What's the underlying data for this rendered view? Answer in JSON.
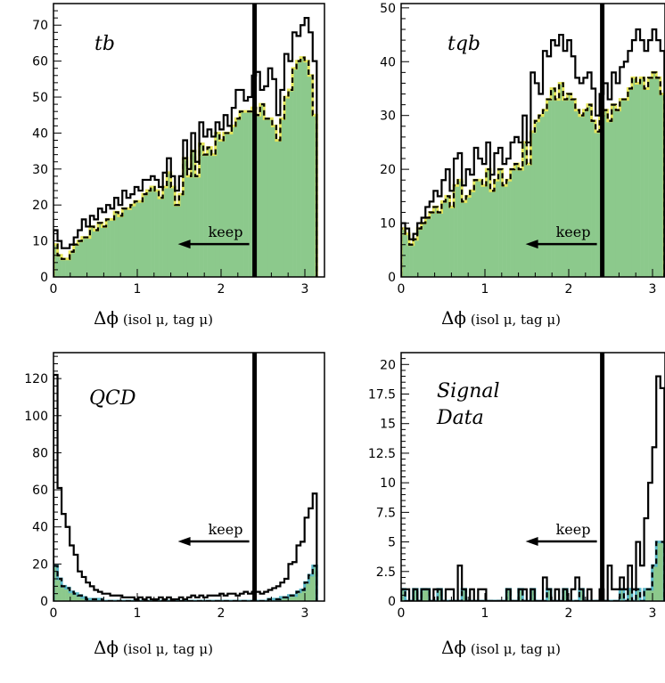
{
  "colors": {
    "fill": "#8cc98c",
    "yellow_dash": "#e6e65a",
    "cyan_dash": "#5ab8c8",
    "line": "#000000"
  },
  "chart_data": [
    {
      "type": "histogram",
      "panel": "tb",
      "label_lines": [
        "tb"
      ],
      "xlabel_symbol": "Δϕ",
      "xlabel_rest": " (isol μ, tag μ)",
      "x_ticks": [
        0,
        1,
        2,
        3
      ],
      "y_ticks": [
        0,
        10,
        20,
        30,
        40,
        50,
        60,
        70
      ],
      "xlim": [
        0,
        3.1416
      ],
      "ylim": [
        0,
        76
      ],
      "cut_x": 2.4,
      "cut_label": "keep",
      "dash_color": "yellow",
      "series": [
        {
          "role": "total_outline",
          "values": [
            13,
            10,
            8,
            8,
            9,
            11,
            13,
            16,
            14,
            17,
            16,
            19,
            18,
            20,
            19,
            22,
            20,
            24,
            22,
            23,
            25,
            24,
            27,
            27,
            28,
            27,
            25,
            29,
            33,
            28,
            24,
            28,
            38,
            30,
            40,
            32,
            43,
            39,
            41,
            39,
            43,
            41,
            45,
            42,
            47,
            52,
            52,
            49,
            50,
            56,
            57,
            52,
            53,
            58,
            55,
            45,
            52,
            62,
            60,
            68,
            67,
            70,
            72,
            68,
            60
          ]
        },
        {
          "role": "signal_filled",
          "values": [
            9,
            6,
            5,
            5,
            7,
            9,
            10,
            11,
            11,
            14,
            13,
            15,
            14,
            16,
            16,
            18,
            17,
            19,
            19,
            20,
            21,
            21,
            23,
            24,
            25,
            24,
            22,
            25,
            29,
            25,
            20,
            23,
            33,
            28,
            35,
            28,
            37,
            34,
            36,
            34,
            40,
            38,
            40,
            40,
            42,
            44,
            46,
            46,
            46,
            47,
            45,
            48,
            44,
            44,
            42,
            38,
            44,
            50,
            52,
            58,
            60,
            61,
            60,
            56,
            45
          ]
        }
      ]
    },
    {
      "type": "histogram",
      "panel": "tqb",
      "label_lines": [
        "tqb"
      ],
      "xlabel_symbol": "Δϕ",
      "xlabel_rest": " (isol μ, tag μ)",
      "x_ticks": [
        0,
        1,
        2,
        3
      ],
      "y_ticks": [
        0,
        10,
        20,
        30,
        40,
        50
      ],
      "xlim": [
        0,
        3.1416
      ],
      "ylim": [
        0,
        50.8
      ],
      "cut_x": 2.4,
      "cut_label": "keep",
      "dash_color": "yellow",
      "series": [
        {
          "role": "total_outline",
          "values": [
            10,
            9,
            7,
            8,
            10,
            11,
            13,
            14,
            16,
            15,
            18,
            20,
            16,
            22,
            23,
            17,
            20,
            19,
            24,
            22,
            21,
            25,
            19,
            23,
            24,
            21,
            22,
            25,
            26,
            25,
            30,
            25,
            38,
            36,
            34,
            42,
            41,
            44,
            43,
            45,
            42,
            44,
            41,
            37,
            36,
            37,
            38,
            35,
            30,
            34,
            36,
            33,
            38,
            36,
            39,
            40,
            42,
            44,
            46,
            44,
            42,
            44,
            46,
            44,
            42
          ]
        },
        {
          "role": "signal_filled",
          "values": [
            9,
            8,
            6,
            7,
            9,
            10,
            11,
            12,
            13,
            12,
            14,
            15,
            13,
            17,
            18,
            14,
            15,
            16,
            18,
            18,
            17,
            20,
            16,
            18,
            20,
            17,
            18,
            20,
            21,
            20,
            25,
            21,
            27,
            29,
            30,
            31,
            33,
            35,
            33,
            36,
            33,
            34,
            33,
            31,
            30,
            31,
            32,
            29,
            27,
            30,
            31,
            29,
            32,
            31,
            33,
            33,
            35,
            37,
            36,
            37,
            35,
            37,
            38,
            37,
            34
          ]
        }
      ]
    },
    {
      "type": "histogram",
      "panel": "QCD",
      "label_lines": [
        "QCD"
      ],
      "xlabel_symbol": "Δϕ",
      "xlabel_rest": " (isol μ, tag μ)",
      "x_ticks": [
        0,
        1,
        2,
        3
      ],
      "y_ticks": [
        0,
        20,
        40,
        60,
        80,
        100,
        120
      ],
      "xlim": [
        0,
        3.1416
      ],
      "ylim": [
        0,
        134
      ],
      "cut_x": 2.4,
      "cut_label": "keep",
      "dash_color": "cyan",
      "series": [
        {
          "role": "total_outline",
          "values": [
            122,
            61,
            47,
            40,
            30,
            25,
            16,
            13,
            10,
            8,
            6,
            5,
            4,
            4,
            3,
            3,
            3,
            2,
            2,
            2,
            1,
            2,
            1,
            2,
            1,
            1,
            2,
            1,
            2,
            1,
            1,
            2,
            1,
            2,
            3,
            2,
            3,
            2,
            3,
            3,
            3,
            4,
            3,
            4,
            4,
            3,
            4,
            5,
            4,
            5,
            5,
            4,
            5,
            6,
            7,
            8,
            10,
            12,
            20,
            21,
            30,
            32,
            45,
            50,
            58
          ]
        },
        {
          "role": "signal_filled",
          "values": [
            19,
            12,
            8,
            7,
            5,
            4,
            3,
            2,
            1,
            1,
            1,
            1,
            0,
            0,
            0,
            0,
            0,
            0,
            0,
            0,
            0,
            0,
            0,
            0,
            0,
            0,
            0,
            0,
            0,
            0,
            0,
            0,
            0,
            0,
            0,
            0,
            0,
            0,
            0,
            0,
            0,
            0,
            0,
            0,
            0,
            0,
            0,
            0,
            0,
            0,
            0,
            0,
            0,
            1,
            1,
            1,
            2,
            2,
            3,
            3,
            5,
            6,
            10,
            14,
            19
          ]
        }
      ]
    },
    {
      "type": "histogram",
      "panel": "Signal Data",
      "label_lines": [
        "Signal",
        "Data"
      ],
      "xlabel_symbol": "Δϕ",
      "xlabel_rest": " (isol μ, tag μ)",
      "x_ticks": [
        0,
        1,
        2,
        3
      ],
      "y_ticks": [
        "0",
        "2.5",
        "5",
        "7.5",
        "10",
        "12.5",
        "15",
        "17.5",
        "20"
      ],
      "xlim": [
        0,
        3.1416
      ],
      "ylim": [
        0,
        21
      ],
      "cut_x": 2.4,
      "cut_label": "keep",
      "dash_color": "cyan",
      "series": [
        {
          "role": "total_outline",
          "values": [
            1,
            1,
            0,
            1,
            0,
            1,
            1,
            0,
            1,
            1,
            0,
            1,
            1,
            0,
            3,
            1,
            0,
            1,
            0,
            1,
            1,
            0,
            0,
            0,
            0,
            0,
            1,
            0,
            0,
            1,
            1,
            0,
            1,
            0,
            0,
            2,
            1,
            0,
            1,
            0,
            1,
            0,
            1,
            2,
            1,
            0,
            1,
            0,
            0,
            1,
            0,
            3,
            1,
            1,
            2,
            1,
            3,
            1,
            5,
            3,
            7,
            10,
            13,
            19,
            18
          ]
        },
        {
          "role": "signal_filled",
          "values": [
            1,
            0,
            0,
            1,
            0,
            1,
            1,
            0,
            0,
            1,
            0,
            0,
            0,
            0,
            0,
            1,
            0,
            0,
            0,
            0,
            0,
            0,
            0,
            0,
            0,
            0,
            1,
            0,
            0,
            1,
            0,
            0,
            1,
            0,
            0,
            0,
            1,
            0,
            0,
            0,
            1,
            0,
            0,
            0,
            1,
            0,
            0,
            0,
            0,
            0,
            0,
            0,
            0,
            0,
            1,
            0,
            1,
            0,
            1,
            0,
            1,
            1,
            3,
            5,
            5
          ]
        }
      ]
    }
  ]
}
